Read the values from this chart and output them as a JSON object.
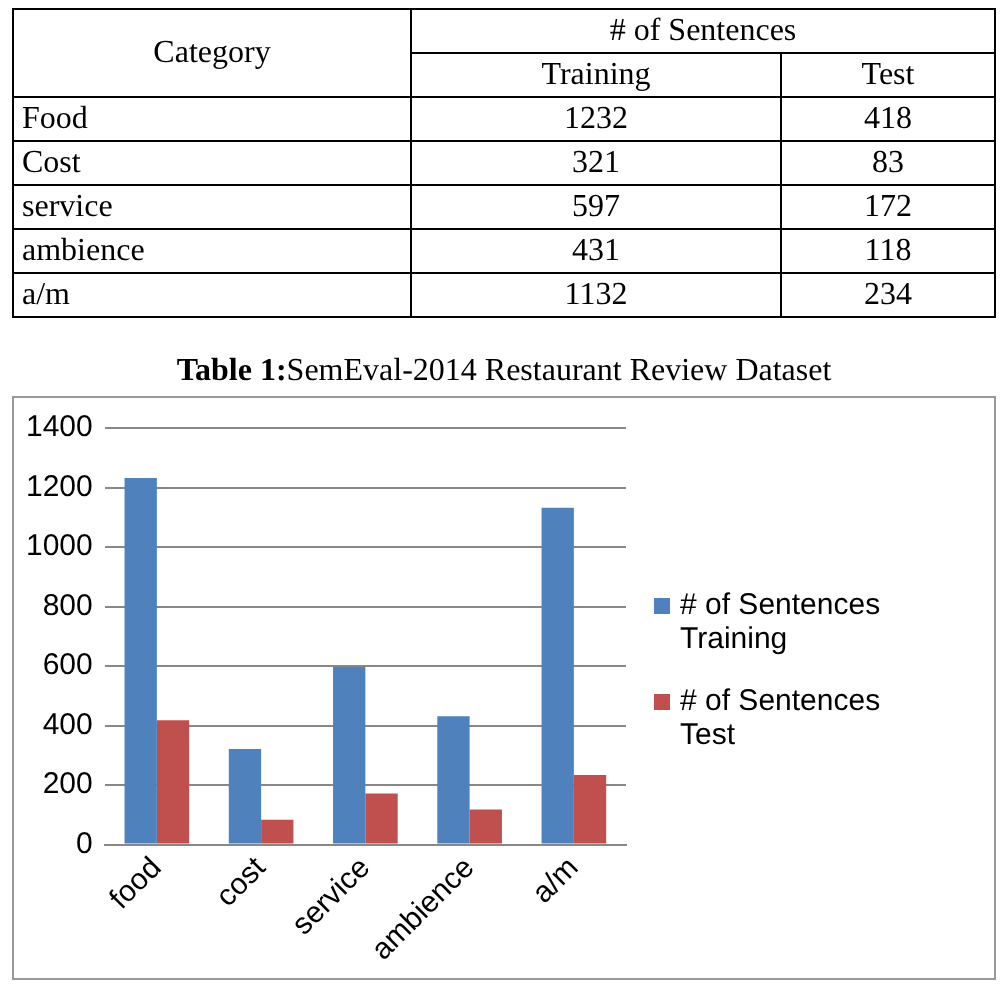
{
  "chart_data": [
    {
      "type": "other",
      "title": "Table 1:SemEval-2014 Restaurant Review Dataset",
      "xlabel": "Category",
      "legend_title": "# of Sentences",
      "categories": [
        "Food",
        "Cost",
        "service",
        "ambience",
        "a/m"
      ],
      "series": [
        {
          "name": "Training",
          "values": [
            1232,
            321,
            597,
            431,
            1132
          ]
        },
        {
          "name": "Test",
          "values": [
            418,
            83,
            172,
            118,
            234
          ]
        }
      ],
      "data_labels": true
    },
    {
      "type": "bar",
      "categories": [
        "food",
        "cost",
        "service",
        "ambience",
        "a/m"
      ],
      "series": [
        {
          "name": "# of Sentences Training",
          "color": "#4f81bd",
          "values": [
            1232,
            321,
            597,
            431,
            1132
          ]
        },
        {
          "name": "# of Sentences Test",
          "color": "#c0504d",
          "values": [
            418,
            83,
            172,
            118,
            234
          ]
        }
      ],
      "ylim": [
        0,
        1400
      ],
      "yticks": [
        0,
        200,
        400,
        600,
        800,
        1000,
        1200,
        1400
      ],
      "grid": "y",
      "legend": "right"
    }
  ]
}
